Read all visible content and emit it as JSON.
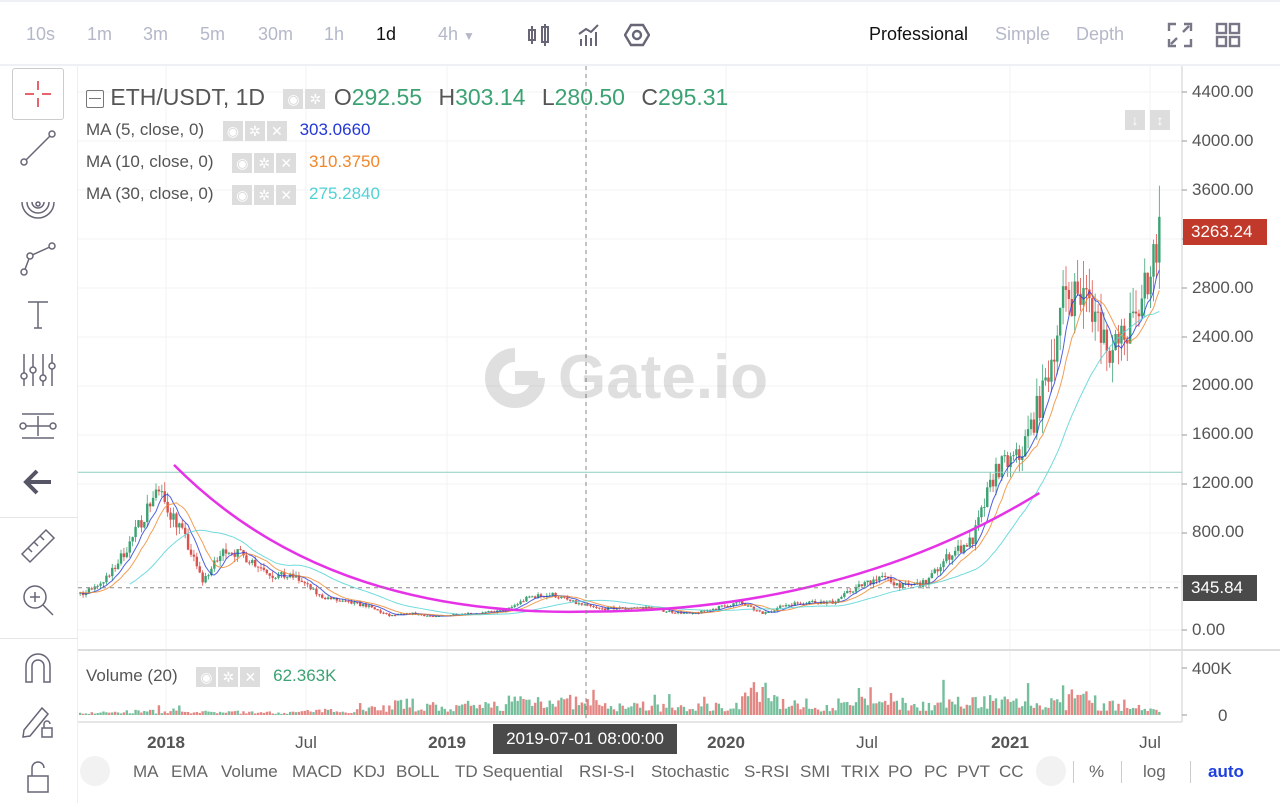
{
  "toolbar": {
    "timeframes": [
      "10s",
      "1m",
      "3m",
      "5m",
      "30m",
      "1h",
      "1d",
      "4h"
    ],
    "active_timeframe": "1d",
    "modes": [
      "Professional",
      "Simple",
      "Depth"
    ],
    "active_mode": "Professional"
  },
  "legend": {
    "symbol": "ETH/USDT, 1D",
    "o_label": "O",
    "o": "292.55",
    "h_label": "H",
    "h": "303.14",
    "l_label": "L",
    "l": "280.50",
    "c_label": "C",
    "c": "295.31",
    "ma": [
      {
        "label": "MA (5, close, 0)",
        "value": "303.0660",
        "color": "#2438d6"
      },
      {
        "label": "MA (10, close, 0)",
        "value": "310.3750",
        "color": "#f0862a"
      },
      {
        "label": "MA (30, close, 0)",
        "value": "275.2840",
        "color": "#4fd2d4"
      }
    ],
    "volume_label": "Volume (20)",
    "volume_value": "62.363K"
  },
  "watermark": "Gate.io",
  "price_axis": [
    "4400.00",
    "4000.00",
    "3600.00",
    "3263.24",
    "2800.00",
    "2400.00",
    "2000.00",
    "1600.00",
    "1200.00",
    "800.00",
    "345.84",
    "0.00"
  ],
  "last_price": "3263.24",
  "crosshair_price": "345.84",
  "crosshair_time": "2019-07-01 08:00:00",
  "volume_axis": [
    "400K",
    "0"
  ],
  "time_axis": [
    "2018",
    "Jul",
    "2019",
    "2020",
    "Jul",
    "2021",
    "Jul"
  ],
  "indicators": [
    "MA",
    "EMA",
    "Volume",
    "MACD",
    "KDJ",
    "BOLL",
    "TD Sequential",
    "RSI-S-I",
    "Stochastic",
    "S-RSI",
    "SMI",
    "TRIX",
    "PO",
    "PC",
    "PVT",
    "CC"
  ],
  "scale_options": [
    "%",
    "log",
    "auto"
  ],
  "colors": {
    "up": "#3ba272",
    "down": "#d9534f",
    "accent": "#1e40e0",
    "curve": "#e632e6",
    "hline": "#8fcfc0"
  },
  "chart_data": {
    "type": "candlestick",
    "title": "ETH/USDT, 1D",
    "ylim": [
      0,
      4500
    ],
    "months": [
      "2017-09",
      "2017-10",
      "2017-11",
      "2017-12",
      "2018-01",
      "2018-02",
      "2018-03",
      "2018-04",
      "2018-05",
      "2018-06",
      "2018-07",
      "2018-08",
      "2018-09",
      "2018-10",
      "2018-11",
      "2018-12",
      "2019-01",
      "2019-02",
      "2019-03",
      "2019-04",
      "2019-05",
      "2019-06",
      "2019-07",
      "2019-08",
      "2019-09",
      "2019-10",
      "2019-11",
      "2019-12",
      "2020-01",
      "2020-02",
      "2020-03",
      "2020-04",
      "2020-05",
      "2020-06",
      "2020-07",
      "2020-08",
      "2020-09",
      "2020-10",
      "2020-11",
      "2020-12",
      "2021-01",
      "2021-02",
      "2021-03",
      "2021-04",
      "2021-05",
      "2021-06",
      "2021-07",
      "2021-08"
    ],
    "close": [
      300,
      305,
      440,
      750,
      1150,
      850,
      400,
      670,
      580,
      450,
      430,
      280,
      230,
      200,
      115,
      135,
      107,
      135,
      140,
      160,
      270,
      290,
      218,
      172,
      180,
      182,
      152,
      130,
      180,
      225,
      133,
      207,
      231,
      225,
      345,
      435,
      360,
      386,
      615,
      737,
      1314,
      1416,
      1918,
      2773,
      2700,
      2275,
      2530,
      3263
    ],
    "volume_k": [
      20,
      15,
      20,
      25,
      30,
      25,
      20,
      25,
      25,
      20,
      20,
      30,
      35,
      40,
      60,
      90,
      70,
      60,
      60,
      80,
      120,
      130,
      110,
      80,
      70,
      70,
      60,
      55,
      70,
      80,
      180,
      110,
      90,
      70,
      90,
      100,
      100,
      80,
      90,
      100,
      120,
      110,
      90,
      90,
      140,
      80,
      60,
      50
    ],
    "horizontal_line": 1290,
    "curve": [
      {
        "month": "2018-01",
        "price": 1350
      },
      {
        "month": "2019-07",
        "price": 150
      },
      {
        "month": "2021-02",
        "price": 1120
      }
    ]
  }
}
